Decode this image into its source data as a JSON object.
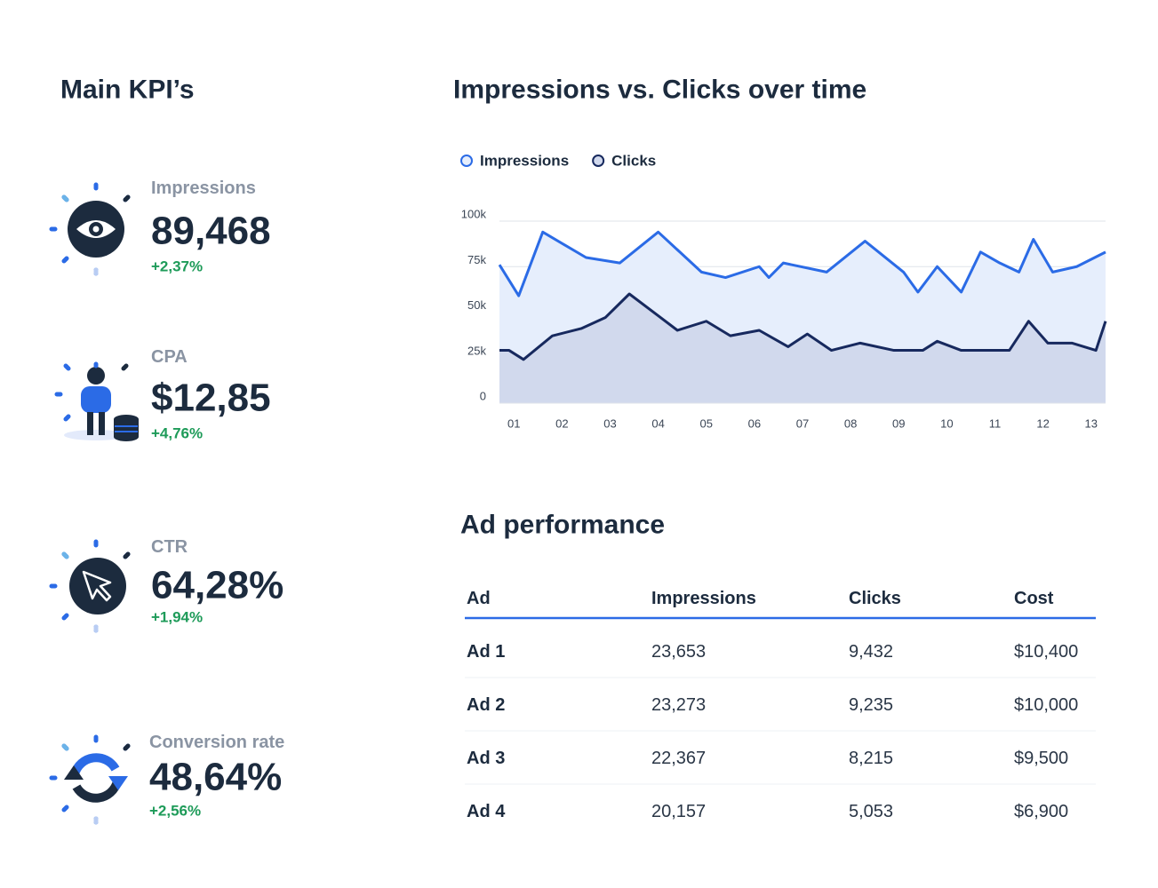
{
  "kpi_section": {
    "title": "Main KPI’s",
    "kpis": [
      {
        "label": "Impressions",
        "value": "89,468",
        "change": "+2,37%"
      },
      {
        "label": "CPA",
        "value": "$12,85",
        "change": "+4,76%"
      },
      {
        "label": "CTR",
        "value": "64,28%",
        "change": "+1,94%"
      },
      {
        "label": "Conversion rate",
        "value": "48,64%",
        "change": "+2,56%"
      }
    ]
  },
  "chart_data": {
    "type": "area",
    "title": "Impressions vs. Clicks over time",
    "series": [
      {
        "name": "Impressions",
        "color": "#2b6be6",
        "fill": "#e6eefc",
        "x": [
          0.7,
          1.1,
          1.6,
          2.5,
          3.2,
          4.0,
          4.9,
          5.4,
          6.1,
          6.3,
          6.6,
          7.5,
          8.3,
          9.1,
          9.4,
          9.8,
          10.3,
          10.7,
          11.1,
          11.5,
          11.8,
          12.2,
          12.7,
          13.3
        ],
        "values": [
          76000,
          59000,
          94000,
          80000,
          77000,
          94000,
          72000,
          69000,
          75000,
          69000,
          77000,
          72000,
          89000,
          72000,
          61000,
          75000,
          61000,
          83000,
          77000,
          72000,
          90000,
          72000,
          75000,
          83000
        ]
      },
      {
        "name": "Clicks",
        "color": "#17295e",
        "fill": "#d1d9ed",
        "x": [
          0.7,
          0.9,
          1.2,
          1.8,
          2.4,
          2.9,
          3.4,
          4.0,
          4.4,
          5.0,
          5.5,
          6.1,
          6.7,
          7.1,
          7.6,
          8.2,
          8.9,
          9.5,
          9.8,
          10.3,
          11.3,
          11.7,
          12.1,
          12.6,
          13.1,
          13.3
        ],
        "values": [
          29000,
          29000,
          24000,
          37000,
          41000,
          47000,
          60000,
          48000,
          40000,
          45000,
          37000,
          40000,
          31000,
          38000,
          29000,
          33000,
          29000,
          29000,
          34000,
          29000,
          29000,
          45000,
          33000,
          33000,
          29000,
          45000
        ]
      }
    ],
    "xlim": [
      0.7,
      13.3
    ],
    "xticks": [
      {
        "value": 1,
        "label": "01"
      },
      {
        "value": 2,
        "label": "02"
      },
      {
        "value": 3,
        "label": "03"
      },
      {
        "value": 4,
        "label": "04"
      },
      {
        "value": 5,
        "label": "05"
      },
      {
        "value": 6,
        "label": "06"
      },
      {
        "value": 7,
        "label": "07"
      },
      {
        "value": 8,
        "label": "08"
      },
      {
        "value": 9,
        "label": "09"
      },
      {
        "value": 10,
        "label": "10"
      },
      {
        "value": 11,
        "label": "11"
      },
      {
        "value": 12,
        "label": "12"
      },
      {
        "value": 13,
        "label": "13"
      }
    ],
    "ylim": [
      0,
      100000
    ],
    "yticks": [
      0,
      {
        "value": 25000,
        "label": "25k"
      },
      {
        "value": 50000,
        "label": "50k"
      },
      {
        "value": 75000,
        "label": "75k"
      },
      {
        "value": 100000,
        "label": "100k"
      }
    ],
    "grid": true,
    "legend": "top-left"
  },
  "table": {
    "title": "Ad performance",
    "columns": [
      "Ad",
      "Impressions",
      "Clicks",
      "Cost"
    ],
    "rows": [
      [
        "Ad 1",
        "23,653",
        "9,432",
        "$10,400"
      ],
      [
        "Ad 2",
        "23,273",
        "9,235",
        "$10,000"
      ],
      [
        "Ad 3",
        "22,367",
        "8,215",
        "$9,500"
      ],
      [
        "Ad 4",
        "20,157",
        "5,053",
        "$6,900"
      ]
    ]
  }
}
